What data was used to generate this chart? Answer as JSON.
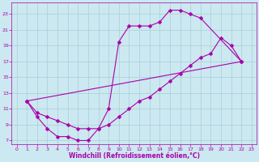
{
  "xlabel": "Windchill (Refroidissement éolien,°C)",
  "bg_color": "#cce8f0",
  "grid_color": "#a8cfd8",
  "line_color": "#aa00aa",
  "spine_color": "#aa00aa",
  "xlim": [
    -0.5,
    23.5
  ],
  "ylim": [
    6.5,
    24.5
  ],
  "xticks": [
    0,
    1,
    2,
    3,
    4,
    5,
    6,
    7,
    8,
    9,
    10,
    11,
    12,
    13,
    14,
    15,
    16,
    17,
    18,
    19,
    20,
    21,
    22,
    23
  ],
  "yticks": [
    7,
    9,
    11,
    13,
    15,
    17,
    19,
    21,
    23
  ],
  "line1_x": [
    1,
    2,
    3,
    4,
    5,
    6,
    7,
    8,
    9,
    10,
    11,
    12,
    13,
    14,
    15,
    16,
    17,
    18,
    22
  ],
  "line1_y": [
    12,
    10,
    8.5,
    7.5,
    7.5,
    7,
    7,
    8.5,
    11,
    19.5,
    21.5,
    21.5,
    21.5,
    22,
    23.5,
    23.5,
    23,
    22.5,
    17
  ],
  "line2_x": [
    1,
    2,
    3,
    4,
    5,
    6,
    7,
    8,
    9,
    10,
    11,
    12,
    13,
    14,
    15,
    16,
    17,
    18,
    19,
    20,
    21,
    22
  ],
  "line2_y": [
    12,
    10.5,
    10,
    9.5,
    9,
    8.5,
    8.5,
    8.5,
    9,
    10,
    11,
    12,
    12.5,
    13.5,
    14.5,
    15.5,
    16.5,
    17.5,
    18,
    20,
    19,
    17
  ],
  "line3_x": [
    1,
    22
  ],
  "line3_y": [
    12,
    17
  ],
  "marker_size": 2.5
}
